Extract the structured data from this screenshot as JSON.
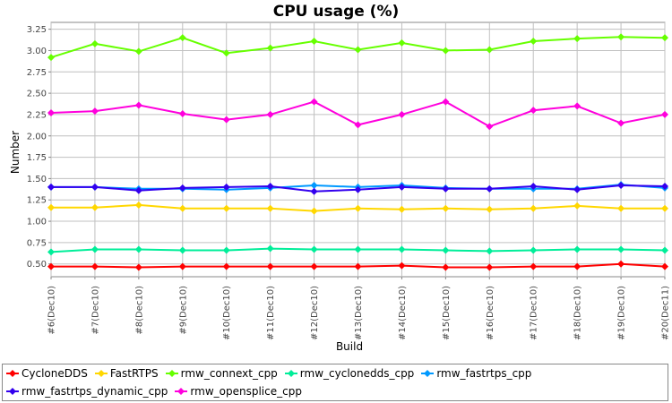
{
  "chart_data": {
    "type": "line",
    "title": "CPU usage (%)",
    "xlabel": "Build",
    "ylabel": "Number",
    "categories": [
      "#6(Dec10)",
      "#7(Dec10)",
      "#8(Dec10)",
      "#9(Dec10)",
      "#10(Dec10)",
      "#11(Dec10)",
      "#12(Dec10)",
      "#13(Dec10)",
      "#14(Dec10)",
      "#15(Dec10)",
      "#16(Dec10)",
      "#17(Dec10)",
      "#18(Dec10)",
      "#19(Dec10)",
      "#20(Dec11)"
    ],
    "yticks": [
      "0.50",
      "0.75",
      "1.00",
      "1.25",
      "1.50",
      "1.75",
      "2.00",
      "2.25",
      "2.50",
      "2.75",
      "3.00",
      "3.25"
    ],
    "ylim": [
      0.35,
      3.33
    ],
    "grid": true,
    "legend_position": "bottom",
    "series": [
      {
        "name": "CycloneDDS",
        "color": "#ff0000",
        "values": [
          0.47,
          0.47,
          0.46,
          0.47,
          0.47,
          0.47,
          0.47,
          0.47,
          0.48,
          0.46,
          0.46,
          0.47,
          0.47,
          0.5,
          0.47
        ]
      },
      {
        "name": "FastRTPS",
        "color": "#ffd700",
        "values": [
          1.16,
          1.16,
          1.19,
          1.15,
          1.15,
          1.15,
          1.12,
          1.15,
          1.14,
          1.15,
          1.14,
          1.15,
          1.18,
          1.15,
          1.15
        ]
      },
      {
        "name": "rmw_connext_cpp",
        "color": "#66ff00",
        "values": [
          2.92,
          3.08,
          2.99,
          3.15,
          2.97,
          3.03,
          3.11,
          3.01,
          3.09,
          3.0,
          3.01,
          3.11,
          3.14,
          3.16,
          3.15
        ]
      },
      {
        "name": "rmw_cyclonedds_cpp",
        "color": "#00ee99",
        "values": [
          0.64,
          0.67,
          0.67,
          0.66,
          0.66,
          0.68,
          0.67,
          0.67,
          0.67,
          0.66,
          0.65,
          0.66,
          0.67,
          0.67,
          0.66
        ]
      },
      {
        "name": "rmw_fastrtps_cpp",
        "color": "#0099ff",
        "values": [
          1.4,
          1.4,
          1.38,
          1.38,
          1.37,
          1.39,
          1.42,
          1.4,
          1.42,
          1.39,
          1.38,
          1.38,
          1.38,
          1.43,
          1.39
        ]
      },
      {
        "name": "rmw_fastrtps_dynamic_cpp",
        "color": "#3300ee",
        "values": [
          1.4,
          1.4,
          1.36,
          1.39,
          1.4,
          1.41,
          1.35,
          1.37,
          1.4,
          1.38,
          1.38,
          1.41,
          1.37,
          1.42,
          1.41
        ]
      },
      {
        "name": "rmw_opensplice_cpp",
        "color": "#ff00dd",
        "values": [
          2.27,
          2.29,
          2.36,
          2.26,
          2.19,
          2.25,
          2.4,
          2.13,
          2.25,
          2.4,
          2.11,
          2.3,
          2.35,
          2.15,
          2.25
        ]
      }
    ]
  }
}
